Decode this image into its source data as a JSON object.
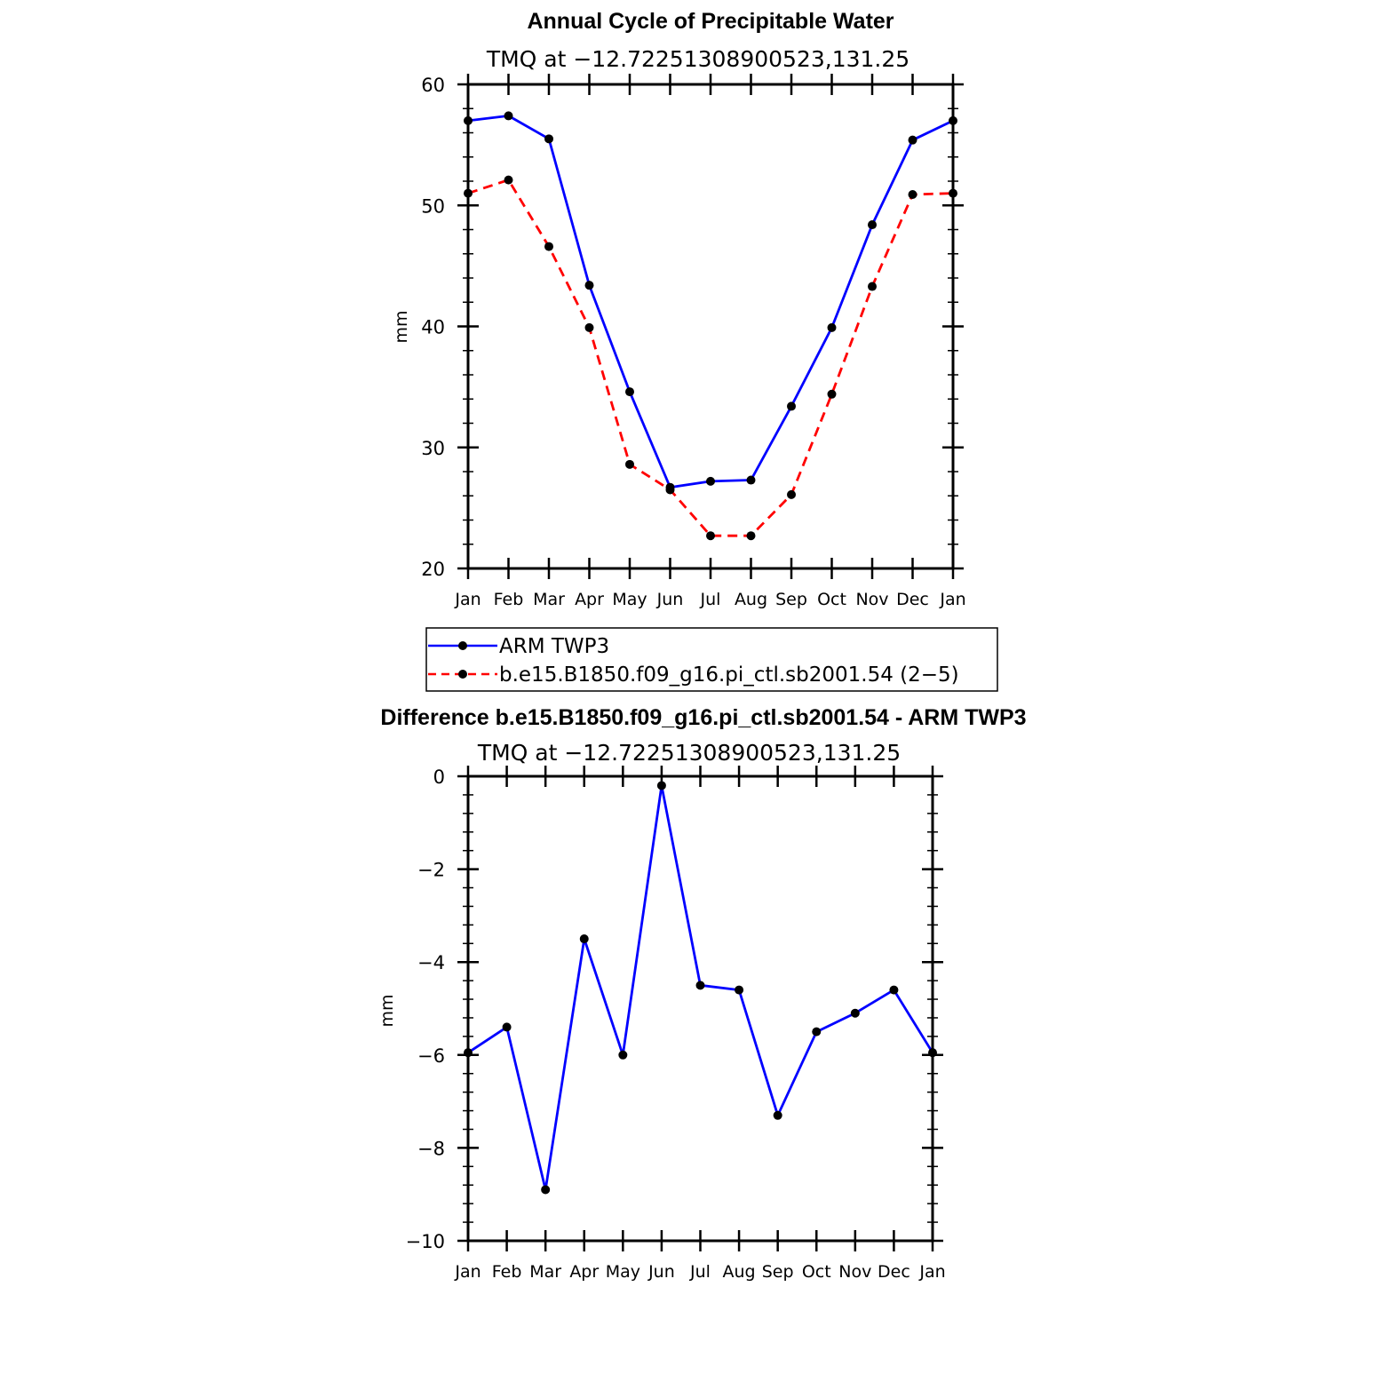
{
  "chart_data": [
    {
      "type": "line",
      "title": "Annual Cycle of Precipitable Water",
      "subtitle": "TMQ at −12.72251308900523,131.25",
      "xlabel": "",
      "ylabel": "mm",
      "categories": [
        "Jan",
        "Feb",
        "Mar",
        "Apr",
        "May",
        "Jun",
        "Jul",
        "Aug",
        "Sep",
        "Oct",
        "Nov",
        "Dec",
        "Jan"
      ],
      "ylim": [
        20,
        60
      ],
      "yticks": [
        "20",
        "30",
        "40",
        "50",
        "60"
      ],
      "series": [
        {
          "name": "ARM TWP3",
          "color": "#0000ff",
          "dash": "solid",
          "values": [
            57.0,
            57.4,
            55.5,
            43.4,
            34.6,
            26.7,
            27.2,
            27.3,
            33.4,
            39.9,
            48.4,
            55.4,
            57.0
          ]
        },
        {
          "name": "b.e15.B1850.f09_g16.pi_ctl.sb2001.54 (2−5)",
          "color": "#ff0000",
          "dash": "dashed",
          "values": [
            51.0,
            52.1,
            46.6,
            39.9,
            28.6,
            26.5,
            22.7,
            22.7,
            26.1,
            34.4,
            43.3,
            50.9,
            51.0
          ]
        }
      ],
      "grid": false,
      "legend_position": "bottom"
    },
    {
      "type": "line",
      "title": "Difference b.e15.B1850.f09_g16.pi_ctl.sb2001.54 - ARM TWP3",
      "subtitle": "TMQ at −12.72251308900523,131.25",
      "xlabel": "",
      "ylabel": "mm",
      "categories": [
        "Jan",
        "Feb",
        "Mar",
        "Apr",
        "May",
        "Jun",
        "Jul",
        "Aug",
        "Sep",
        "Oct",
        "Nov",
        "Dec",
        "Jan"
      ],
      "ylim": [
        -10,
        0
      ],
      "yticks": [
        "−10",
        "−8",
        "−6",
        "−4",
        "−2",
        "0"
      ],
      "series": [
        {
          "color": "#0000ff",
          "dash": "solid",
          "values": [
            -5.95,
            -5.4,
            -8.9,
            -3.5,
            -6.0,
            -0.2,
            -4.5,
            -4.6,
            -7.3,
            -5.5,
            -5.1,
            -4.6,
            -5.95
          ]
        }
      ],
      "grid": false
    }
  ]
}
